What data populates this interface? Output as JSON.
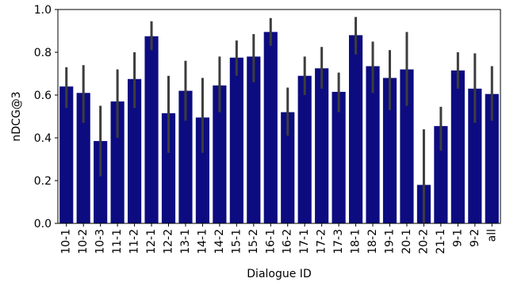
{
  "chart_data": {
    "type": "bar",
    "xlabel": "Dialogue ID",
    "ylabel": "nDCG@3",
    "ylim": [
      0.0,
      1.0
    ],
    "yticks": [
      "0.0",
      "0.2",
      "0.4",
      "0.6",
      "0.8",
      "1.0"
    ],
    "grid": false,
    "bar_color": "#0c0c80",
    "errorbar_color": "#3d3d3d",
    "categories": [
      "10-1",
      "10-2",
      "10-3",
      "11-1",
      "11-2",
      "12-1",
      "12-2",
      "13-1",
      "14-1",
      "14-2",
      "15-1",
      "15-2",
      "16-1",
      "16-2",
      "17-1",
      "17-2",
      "17-3",
      "18-1",
      "18-2",
      "19-1",
      "20-1",
      "20-2",
      "21-1",
      "9-1",
      "9-2",
      "all"
    ],
    "values": [
      0.64,
      0.61,
      0.385,
      0.57,
      0.675,
      0.875,
      0.515,
      0.62,
      0.495,
      0.645,
      0.775,
      0.78,
      0.895,
      0.52,
      0.69,
      0.725,
      0.615,
      0.88,
      0.735,
      0.68,
      0.72,
      0.18,
      0.455,
      0.715,
      0.63,
      0.605
    ],
    "error_low": [
      0.54,
      0.47,
      0.22,
      0.4,
      0.54,
      0.81,
      0.33,
      0.48,
      0.33,
      0.52,
      0.69,
      0.66,
      0.83,
      0.41,
      0.6,
      0.63,
      0.52,
      0.79,
      0.61,
      0.53,
      0.55,
      0.0,
      0.34,
      0.63,
      0.47,
      0.48
    ],
    "error_high": [
      0.73,
      0.74,
      0.55,
      0.72,
      0.8,
      0.945,
      0.69,
      0.76,
      0.68,
      0.78,
      0.855,
      0.885,
      0.96,
      0.635,
      0.78,
      0.825,
      0.705,
      0.965,
      0.85,
      0.81,
      0.895,
      0.44,
      0.545,
      0.8,
      0.795,
      0.735
    ]
  }
}
